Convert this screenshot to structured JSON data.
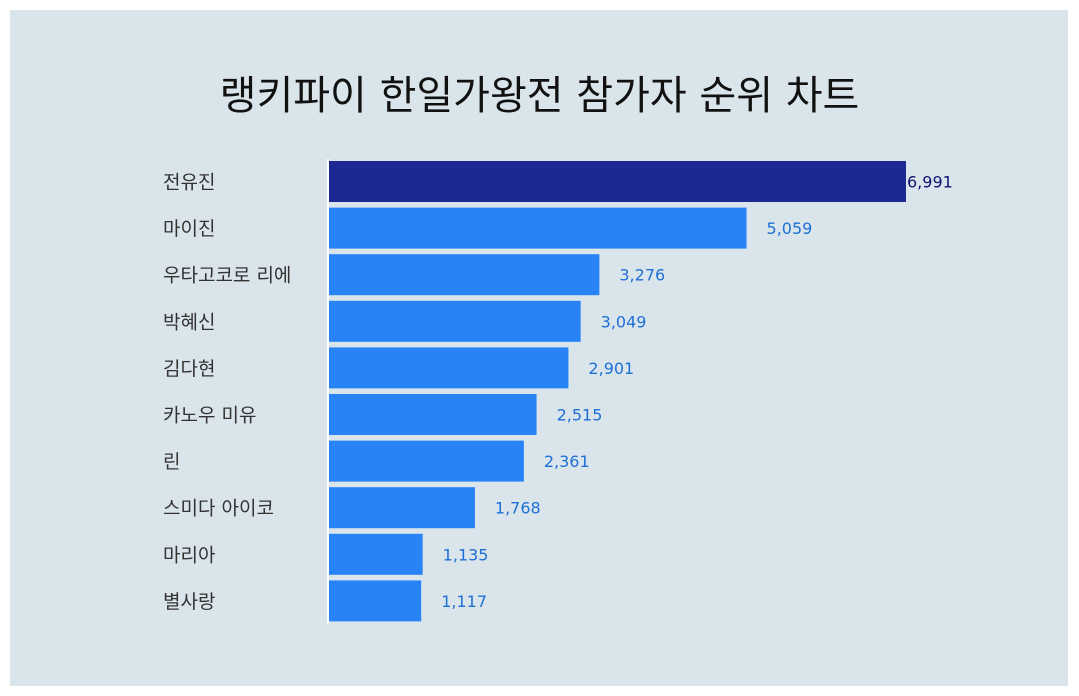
{
  "title": "랭키파이 한일가왕전 참가자 순위 차트",
  "colors": {
    "highlight": "#1e2893",
    "bar": "#2883f7",
    "highlight_label": "#0b1470",
    "label": "#1e6fd6"
  },
  "chart_data": {
    "type": "bar",
    "orientation": "horizontal",
    "title": "랭키파이 한일가왕전 참가자 순위 차트",
    "categories": [
      "전유진",
      "마이진",
      "우타고코로 리에",
      "박혜신",
      "김다현",
      "카노우 미유",
      "린",
      "스미다 아이코",
      "마리아",
      "별사랑"
    ],
    "values": [
      6991,
      5059,
      3276,
      3049,
      2901,
      2515,
      2361,
      1768,
      1135,
      1117
    ],
    "value_labels": [
      "6,991",
      "5,059",
      "3,276",
      "3,049",
      "2,901",
      "2,515",
      "2,361",
      "1,768",
      "1,135",
      "1,117"
    ],
    "highlight_index": 0,
    "xlim": [
      0,
      6991
    ],
    "grid": false,
    "legend": "none"
  }
}
